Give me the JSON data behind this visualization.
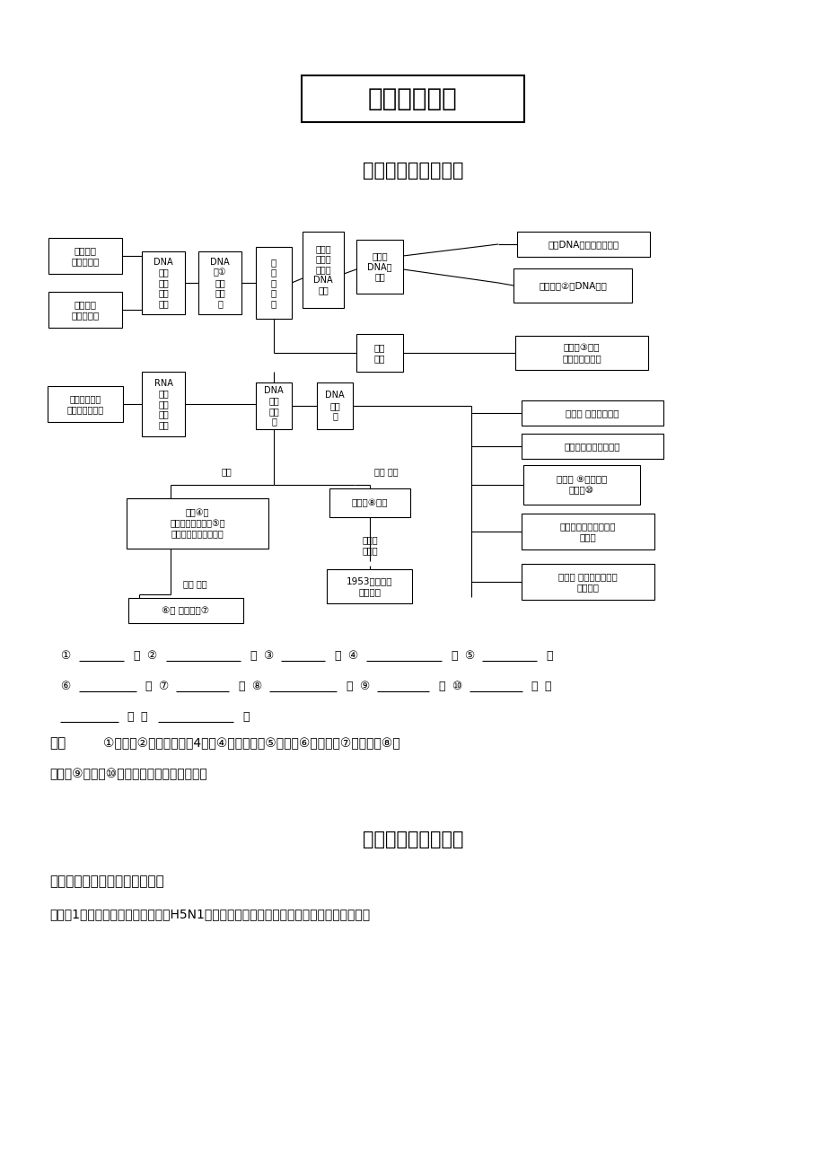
{
  "bg_color": "#ffffff",
  "title1": "章末整合提升",
  "title2": "梁理知识　构建纲要",
  "title3": "整合重点　提升技能",
  "section1": "方法一　巧解同位素标记噜菌体",
  "section1_text": "《典例1》有人试图通过实验来了解H5N1禽流感病毒侵入家禽的一些过程。设计实验如图：",
  "answer_label": "答案",
  "answer_line1": "①主要　②遗传效应　⍂4种　④反向平行　⑤外侧　⑥稳定性　⑦特异性　⑧双",
  "answer_line2": "荑旋　⑨模板　⑩酶　⑪半保留　⑫遗传信息",
  "nodes": {
    "feiyan": "肺炎双球\n菌转化实验",
    "shi": "噜菌体侵\n染细菌实验",
    "dna_zhengju": "DNA\n是遗\n传物\n质的\n证据",
    "yancao": "烟草花叶病毒\n感染烟草的实验",
    "rna_zhengju": "RNA\n是遗\n传物\n质的\n证据",
    "dna_yichuan": "DNA\n是①\n的遗\n传物\n质",
    "jiyinbenzhi": "基\n因\n的\n本\n质",
    "jiyinyouxiao": "基因是\n有遗传\n效应的\nDNA\n片段",
    "jiyindna": "基因与\nDNA的\n关系",
    "meigeDNA": "每个DNA上分布多个基因",
    "jiyinyou2": "基因是有②的DNA片段",
    "yichuanxinxi": "遗传\n信息",
    "yuncang3": "蒋藏在③碗基\n的排列顺序之中",
    "dna_jiegou": "DNA\n分子\n的结\n构",
    "dna_fuzi": "DNA\n的复\n制",
    "shuanglian": "双链④；\n磷酸、脱氧核糖在⑤；\n碗基在内侧构成碗基对",
    "gongneng_texing": "功能 特性",
    "duoyangxing": "⑥： 多样性：⑦",
    "guize_jiegou": "规则的⑧结构",
    "goujian": "构建者\n及时间",
    "watson": "1953年，沃森\n和克里克",
    "shijian": "时间： 细胞分裂间期",
    "changsuo": "场所：主要在细胞核中",
    "tiaojian": "条件： ⑨、原料、\n能量、⑩",
    "tedian": "特点：边解旋边复制、\n⑪复制",
    "yiyi": "意义： 保留亲子代之间\n⑫的稳定"
  }
}
